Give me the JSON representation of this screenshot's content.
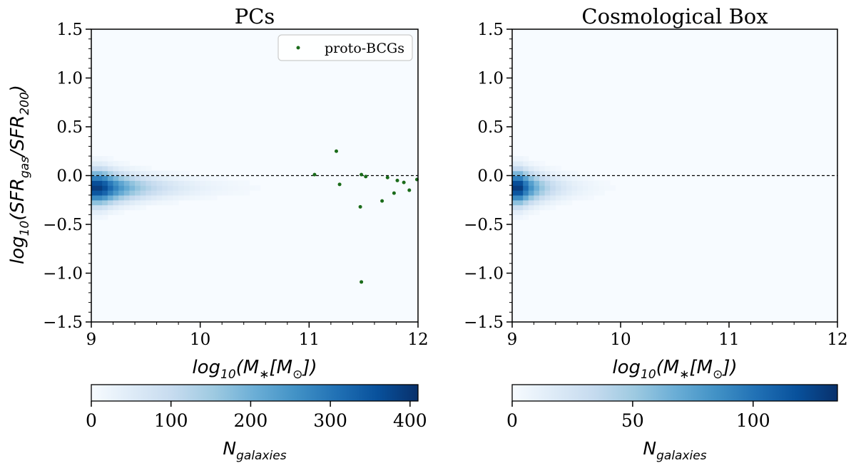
{
  "chart_data": [
    {
      "type": "heatmap",
      "title": "PCs",
      "xlabel": "log10(M*[M⊙])",
      "ylabel": "log10(SFRgas/SFR200)",
      "xlim": [
        9,
        12
      ],
      "ylim": [
        -1.5,
        1.5
      ],
      "x_ticks": [
        "9",
        "10",
        "11",
        "12"
      ],
      "y_ticks": [
        "−1.5",
        "−1.0",
        "−0.5",
        "0.0",
        "0.5",
        "1.0",
        "1.5"
      ],
      "reference_line_y": 0.0,
      "density_peak": {
        "x": 9.1,
        "y": -0.12
      },
      "density_x_extent": 10.7,
      "peak_count": 410,
      "legend": {
        "label": "proto-BCGs",
        "position": "top-right"
      },
      "proto_bcgs": [
        {
          "x": 11.05,
          "y": 0.01
        },
        {
          "x": 11.25,
          "y": 0.25
        },
        {
          "x": 11.28,
          "y": -0.09
        },
        {
          "x": 11.47,
          "y": -0.32
        },
        {
          "x": 11.48,
          "y": 0.01
        },
        {
          "x": 11.48,
          "y": -1.09
        },
        {
          "x": 11.52,
          "y": -0.01
        },
        {
          "x": 11.67,
          "y": -0.26
        },
        {
          "x": 11.72,
          "y": -0.02
        },
        {
          "x": 11.78,
          "y": -0.18
        },
        {
          "x": 11.81,
          "y": -0.05
        },
        {
          "x": 11.87,
          "y": -0.07
        },
        {
          "x": 11.92,
          "y": -0.15
        },
        {
          "x": 11.99,
          "y": -0.04
        }
      ],
      "colorbar": {
        "label": "Ngalaxies",
        "range": [
          0,
          410
        ],
        "ticks": [
          "0",
          "100",
          "200",
          "300",
          "400"
        ],
        "tick_values": [
          0,
          100,
          200,
          300,
          400
        ]
      }
    },
    {
      "type": "heatmap",
      "title": "Cosmological Box",
      "xlabel": "log10(M*[M⊙])",
      "xlim": [
        9,
        12
      ],
      "ylim": [
        -1.5,
        1.5
      ],
      "x_ticks": [
        "9",
        "10",
        "11",
        "12"
      ],
      "y_ticks": [
        "−1.5",
        "−1.0",
        "−0.5",
        "0.0",
        "0.5",
        "1.0",
        "1.5"
      ],
      "reference_line_y": 0.0,
      "density_peak": {
        "x": 9.08,
        "y": -0.12
      },
      "density_x_extent": 10.0,
      "peak_count": 135,
      "colorbar": {
        "label": "Ngalaxies",
        "range": [
          0,
          135
        ],
        "ticks": [
          "0",
          "50",
          "100"
        ],
        "tick_values": [
          0,
          50,
          100
        ]
      }
    }
  ]
}
